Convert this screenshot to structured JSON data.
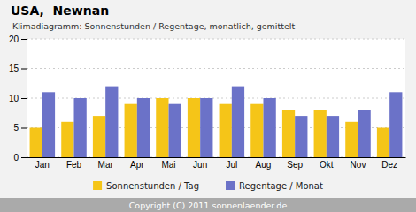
{
  "chart_data": {
    "type": "bar",
    "title": "USA,  Newnan",
    "subtitle": "Klimadiagramm: Sonnenstunden / Regentage, monatlich, gemittelt",
    "categories": [
      "Jan",
      "Feb",
      "Mar",
      "Apr",
      "Mai",
      "Jun",
      "Jul",
      "Aug",
      "Sep",
      "Okt",
      "Nov",
      "Dez"
    ],
    "series": [
      {
        "name": "Sonnenstunden / Tag",
        "color": "#F5C518",
        "values": [
          5,
          6,
          7,
          9,
          10,
          10,
          9,
          9,
          8,
          8,
          6,
          5
        ]
      },
      {
        "name": "Regentage / Monat",
        "color": "#6B72C8",
        "values": [
          11,
          10,
          12,
          10,
          9,
          10,
          12,
          10,
          7,
          7,
          8,
          11
        ]
      }
    ],
    "ylim": [
      0,
      20
    ],
    "yticks": [
      0,
      5,
      10,
      15,
      20
    ],
    "grid": true,
    "legend": "bottom",
    "annotations": [
      "Copyright (C) 2011 sonnenlaender.de"
    ]
  }
}
